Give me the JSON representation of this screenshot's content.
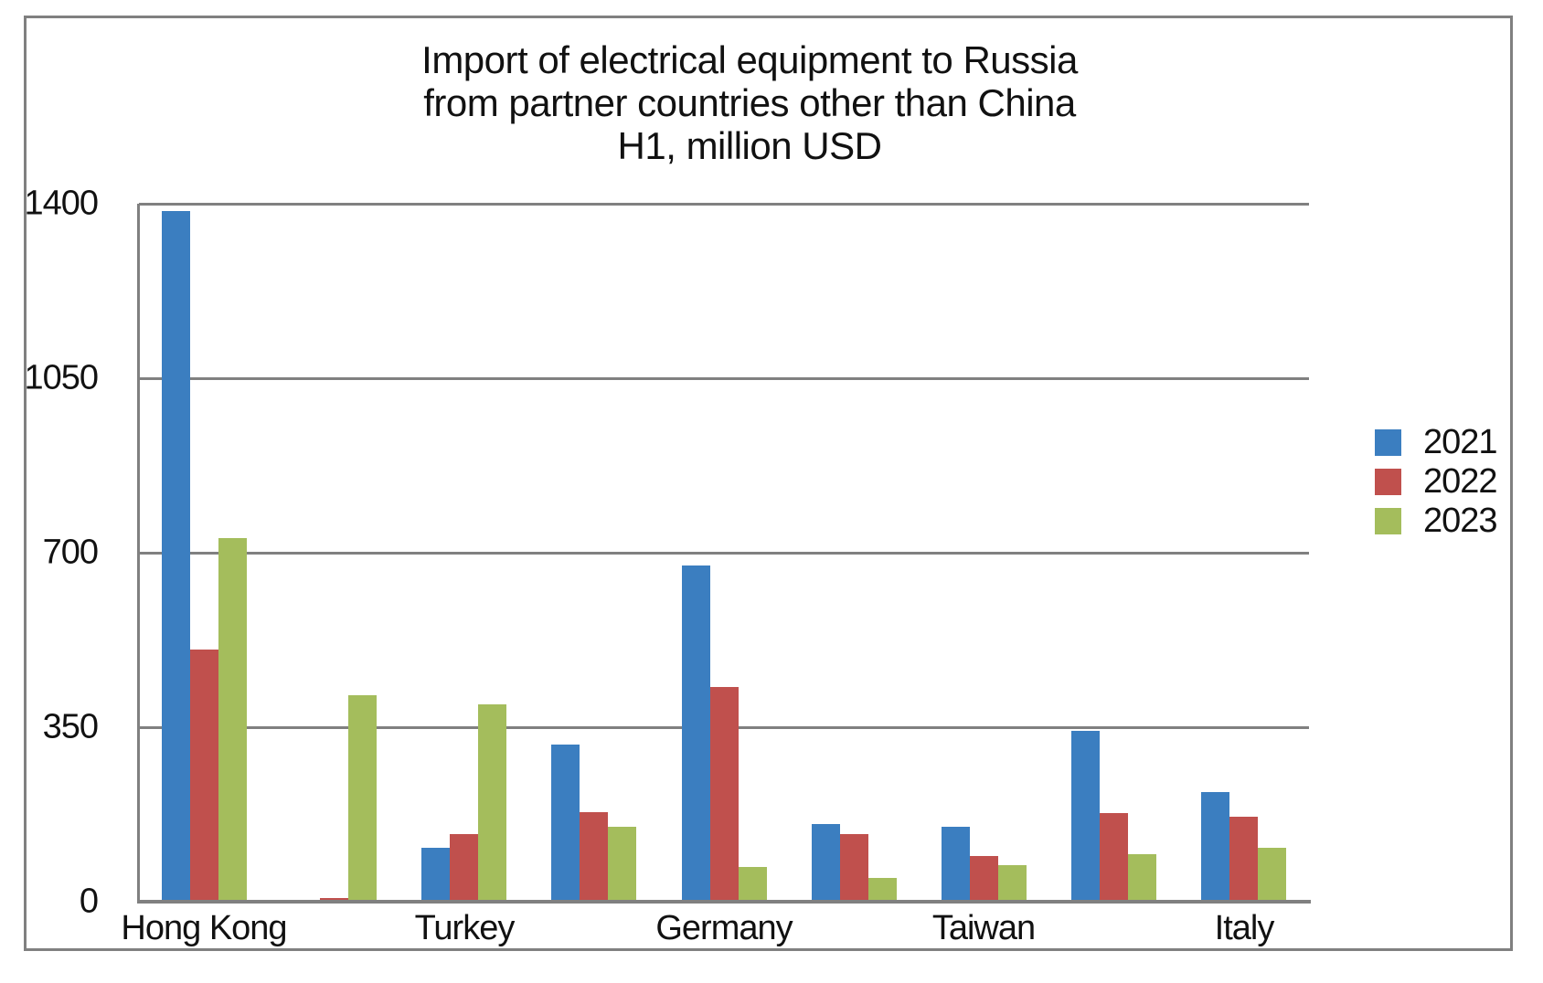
{
  "title_lines": [
    "Import of electrical equipment to Russia",
    "from partner countries other than China",
    "H1, million USD"
  ],
  "chart_data": {
    "type": "bar",
    "title": "Import of electrical equipment to Russia from partner countries other than China H1, million USD",
    "categories": [
      "Hong Kong",
      "",
      "Turkey",
      "",
      "Germany",
      "",
      "Taiwan",
      "",
      "Italy"
    ],
    "series": [
      {
        "name": "2021",
        "color": "#3b7ec0",
        "values": [
          1385,
          0,
          108,
          315,
          675,
          155,
          150,
          343,
          220
        ]
      },
      {
        "name": "2022",
        "color": "#c0504d",
        "values": [
          505,
          8,
          135,
          180,
          430,
          135,
          92,
          178,
          170
        ]
      },
      {
        "name": "2023",
        "color": "#a4bd5c",
        "values": [
          730,
          415,
          395,
          150,
          70,
          48,
          73,
          95,
          108
        ]
      }
    ],
    "xlabel": "",
    "ylabel": "",
    "ylim": [
      0,
      1400
    ],
    "yticks": [
      0,
      350,
      700,
      1050,
      1400
    ],
    "grid": true,
    "legend_position": "right-outside",
    "axis_color": "#808080",
    "grid_color": "#808080",
    "border_color": "#808080",
    "text_color": "#111111",
    "background_color": "#ffffff"
  }
}
